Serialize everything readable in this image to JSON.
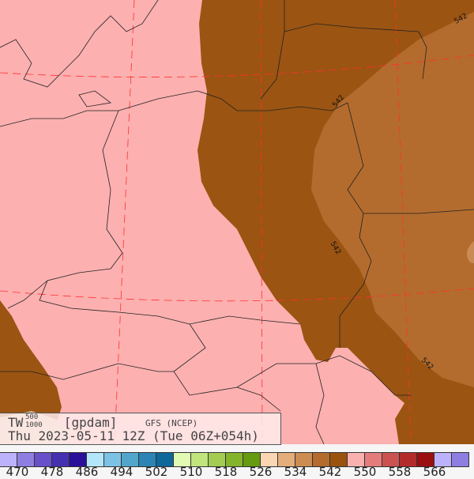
{
  "title": {
    "field": "TW",
    "sup": "500",
    "sub": "1000",
    "unit": "[gpdam]",
    "model": "GFS (NCEP)",
    "valid": "Thu 2023-05-11 12Z (Tue 06Z+054h)"
  },
  "contour_labels": [
    "542",
    "542",
    "542",
    "542"
  ],
  "colors": {
    "background": "#fdb0b0",
    "dark_brown": "#9b5412",
    "light_brown": "#b36c2e",
    "grid": "#ff3030",
    "beige": "#d9c5aa"
  },
  "colorbar": {
    "swatches": [
      "#bcb2fb",
      "#8f7ee2",
      "#6750ca",
      "#4530b2",
      "#2a0f98",
      "#b3e6fb",
      "#7cc2e4",
      "#52a6cc",
      "#2b84b4",
      "#0f679a",
      "#e2fbb3",
      "#c2e47c",
      "#a4cc52",
      "#84b42b",
      "#669a0f",
      "#fbd6b3",
      "#e4ae7c",
      "#cc8c52",
      "#b46b2b",
      "#9a530f",
      "#fbb0b0",
      "#e47c7c",
      "#cc5252",
      "#b42b2b",
      "#9a0f0f",
      "#bcb2fb",
      "#8f7ee2"
    ],
    "labels": [
      "470",
      "478",
      "486",
      "494",
      "502",
      "510",
      "518",
      "526",
      "534",
      "542",
      "550",
      "558",
      "566"
    ]
  }
}
